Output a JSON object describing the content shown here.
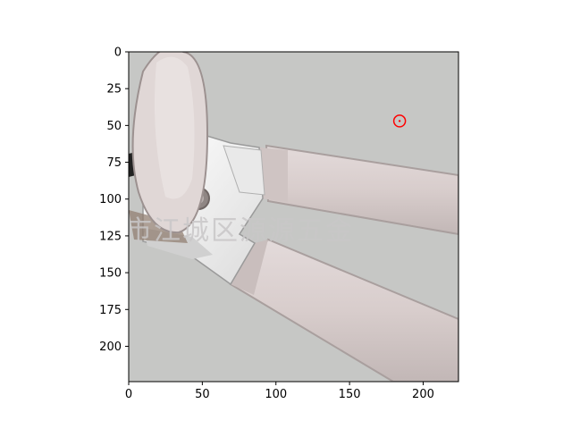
{
  "figure": {
    "x_axis": {
      "ticks": [
        0,
        50,
        100,
        150,
        200
      ],
      "lim": [
        0,
        224
      ]
    },
    "y_axis": {
      "ticks": [
        0,
        25,
        50,
        75,
        100,
        125,
        150,
        175,
        200
      ],
      "lim": [
        224,
        0
      ]
    },
    "marker": {
      "x": 184,
      "y": 47,
      "color": "#ff0000"
    },
    "watermark": "市江城区源源五金",
    "colors": {
      "background": "#c6c7c5",
      "handle": "#d7cccb",
      "blade": "#f2f2f2",
      "frame": "#000000"
    }
  }
}
